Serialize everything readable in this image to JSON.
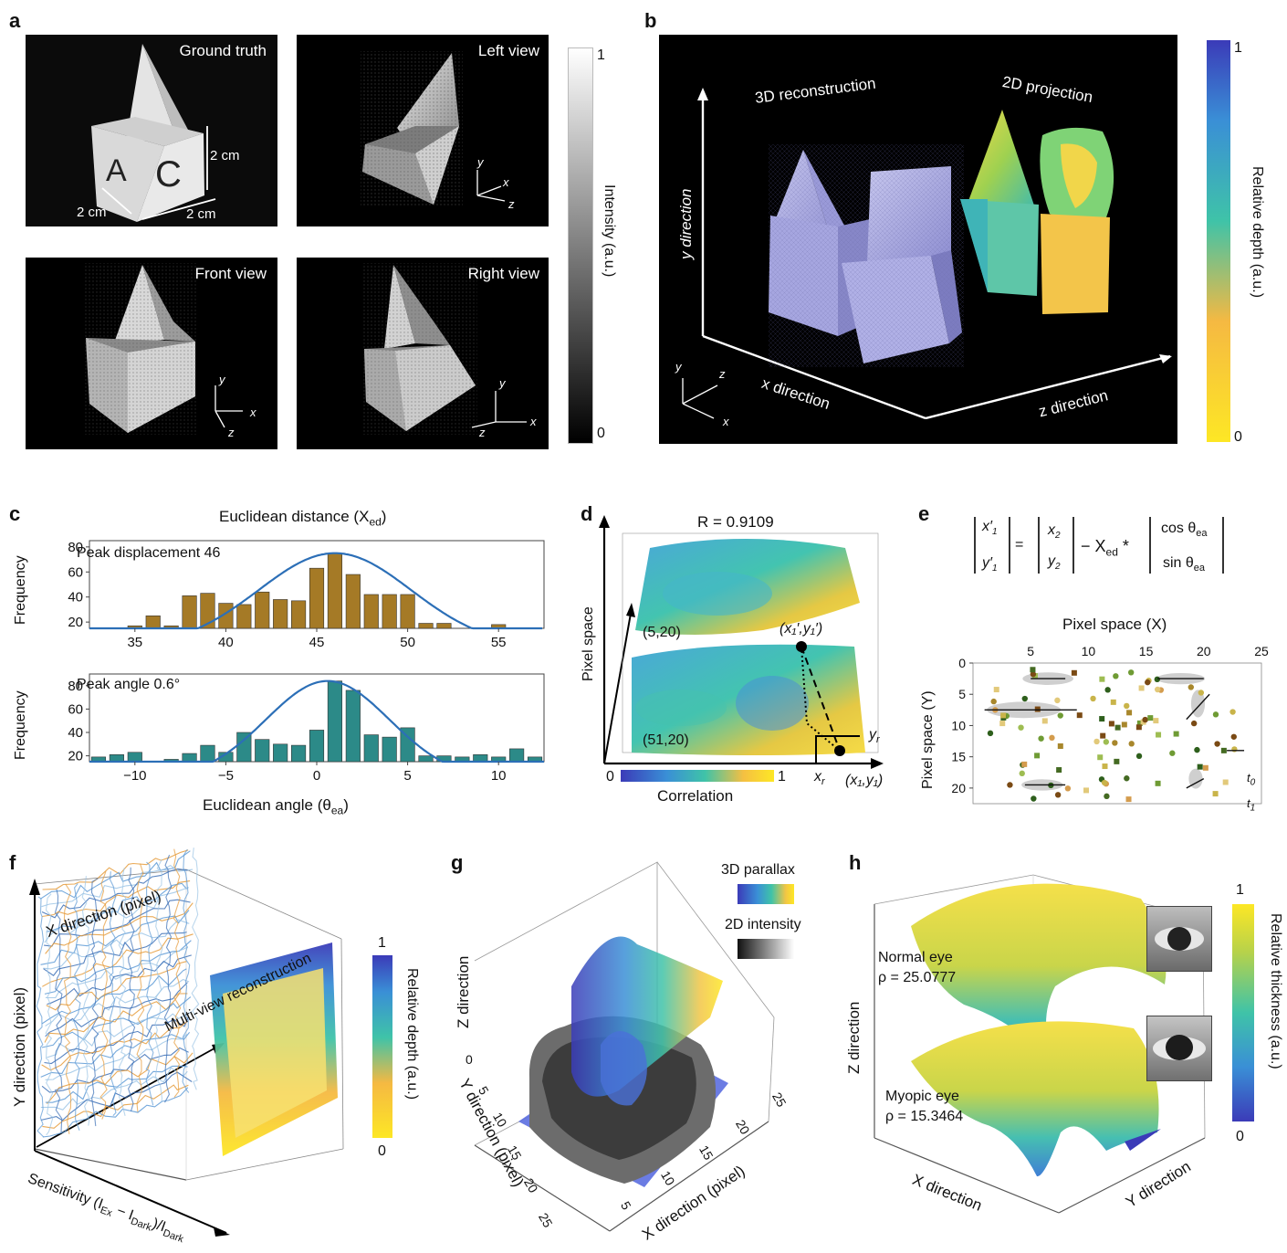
{
  "panels": [
    "a",
    "b",
    "c",
    "d",
    "e",
    "f",
    "g",
    "h"
  ],
  "a": {
    "views": [
      {
        "title": "Ground truth"
      },
      {
        "title": "Left view"
      },
      {
        "title": "Front view"
      },
      {
        "title": "Right view"
      }
    ],
    "dims": {
      "height": "2 cm",
      "width1": "2 cm",
      "width2": "2 cm"
    },
    "cube_letters": [
      "A",
      "C"
    ],
    "axes": {
      "x": "x",
      "y": "y",
      "z": "z"
    },
    "colorbar": {
      "label": "Intensity (a.u.)",
      "max": "1",
      "min": "0"
    }
  },
  "b": {
    "label_3d": "3D reconstruction",
    "label_2d": "2D projection",
    "y_axis": "y direction",
    "x_axis": "x direction",
    "z_axis": "z direction",
    "mini_axes": {
      "x": "x",
      "y": "y",
      "z": "z"
    },
    "colorbar": {
      "label": "Relative depth (a.u.)",
      "max": "1",
      "min": "0"
    }
  },
  "c": {
    "title": "Euclidean distance (X",
    "title_sub": "ed",
    "title_end": ")",
    "top": {
      "annotation": "Peak displacement 46",
      "ylabel": "Frequency",
      "yticks": [
        "80",
        "60",
        "40",
        "20"
      ],
      "xticks": [
        "35",
        "40",
        "45",
        "50",
        "55"
      ]
    },
    "bottom": {
      "annotation": "Peak angle 0.6°",
      "ylabel": "Frequency",
      "yticks": [
        "80",
        "60",
        "40",
        "20"
      ],
      "xticks": [
        "−10",
        "−5",
        "0",
        "5",
        "10"
      ],
      "xlabel": "Euclidean angle (θ",
      "xlabel_sub": "ea",
      "xlabel_end": ")"
    }
  },
  "chart_data": [
    {
      "type": "bar",
      "x": [
        34,
        35,
        36,
        37,
        38,
        39,
        40,
        41,
        42,
        43,
        44,
        45,
        46,
        47,
        48,
        49,
        50,
        51,
        52,
        53,
        54,
        55,
        56,
        57
      ],
      "values": [
        15,
        17,
        25,
        17,
        41,
        43,
        35,
        34,
        44,
        38,
        37,
        63,
        75,
        58,
        42,
        42,
        42,
        19,
        19,
        15,
        15,
        18,
        15,
        15
      ],
      "xlim": [
        32.5,
        57.5
      ],
      "ylim": [
        15,
        85
      ],
      "ylabel": "Frequency",
      "fit": {
        "type": "gaussian",
        "mean": 46,
        "peak": 75
      }
    },
    {
      "type": "bar",
      "x": [
        -12,
        -11,
        -10,
        -9,
        -8,
        -7,
        -6,
        -5,
        -4,
        -3,
        -2,
        -1,
        0,
        1,
        2,
        3,
        4,
        5,
        6,
        7,
        8,
        9,
        10,
        11,
        12
      ],
      "values": [
        19,
        21,
        23,
        15,
        17,
        22,
        29,
        23,
        40,
        34,
        30,
        29,
        42,
        84,
        76,
        38,
        36,
        44,
        20,
        20,
        19,
        21,
        19,
        26,
        19
      ],
      "xlim": [
        -12.5,
        12.5
      ],
      "ylim": [
        15,
        90
      ],
      "xlabel": "Euclidean angle (θea)",
      "ylabel": "Frequency",
      "fit": {
        "type": "gaussian",
        "mean": 0.6,
        "peak": 84
      }
    }
  ],
  "d": {
    "r_label": "R = 0.9109",
    "y_axis": "Pixel space",
    "pt1": "(5,20)",
    "pt2": "(51,20)",
    "pt_top": "(x₁′,y₁′)",
    "pt_bottom": "(x₁,y₁)",
    "xr": "x",
    "xr_sub": "r",
    "yr": "y",
    "yr_sub": "r",
    "colorbar": {
      "label": "Correlation",
      "min": "0",
      "max": "1"
    }
  },
  "e": {
    "eq_minus": "− X",
    "eq_sub": "ed",
    "eq_star": " *",
    "eq_cos": "cos θ",
    "eq_sin": "sin θ",
    "eq_ea": "ea",
    "title": "Pixel space (X)",
    "ylabel": "Pixel space (Y)",
    "xticks": [
      "5",
      "10",
      "15",
      "20",
      "25"
    ],
    "yticks": [
      "0",
      "5",
      "10",
      "15",
      "20"
    ],
    "t0": "t",
    "t0_sub": "0",
    "t1": "t",
    "t1_sub": "1"
  },
  "f": {
    "x_axis": "X direction (pixel)",
    "y_axis": "Y direction (pixel)",
    "s_axis": "Sensitivity (I",
    "s_ex": "Ex",
    "s_mid": " − I",
    "s_dark": "Dark",
    "s_end": ")/I",
    "s_dark2": "Dark",
    "multi": "Multi-view reconstruction",
    "colorbar": {
      "label": "Relative depth (a.u.)",
      "max": "1",
      "min": "0"
    }
  },
  "g": {
    "legend1": "3D parallax",
    "legend2": "2D intensity",
    "z_axis": "Z direction",
    "y_axis": "Y direction (pixel)",
    "x_axis": "X direction (pixel)",
    "z0": "0",
    "yticks": [
      "5",
      "10",
      "15",
      "20",
      "25"
    ],
    "xticks": [
      "5",
      "10",
      "15",
      "20",
      "25"
    ]
  },
  "h": {
    "normal": "Normal eye",
    "normal_rho": "ρ = 25.0777",
    "myopic": "Myopic eye",
    "myopic_rho": "ρ = 15.3464",
    "z_axis": "Z direction",
    "x_axis": "X direction",
    "y_axis": "Y direction",
    "colorbar": {
      "label": "Relative thickness (a.u.)",
      "max": "1",
      "min": "0"
    }
  }
}
